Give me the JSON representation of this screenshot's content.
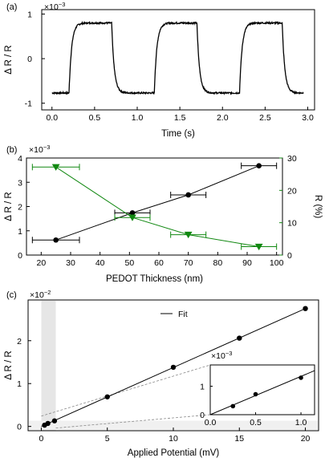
{
  "colors": {
    "black": "#000000",
    "green": "#118811",
    "shade": "#e6e6e6",
    "guide": "#888888"
  },
  "chart_data": [
    {
      "panel": "(a)",
      "type": "line",
      "title": "",
      "xlabel": "Time (s)",
      "ylabel": "Δ R / R",
      "y_multiplier": "×10",
      "y_multiplier_exp": "−3",
      "xlim": [
        -0.12,
        3.08
      ],
      "ylim": [
        -1.15,
        1.1
      ],
      "xticks": [
        "0.0",
        "0.5",
        "1.0",
        "1.5",
        "2.0",
        "2.5",
        "3.0"
      ],
      "xtick_values": [
        0,
        0.5,
        1.0,
        1.5,
        2.0,
        2.5,
        3.0
      ],
      "yticks": [
        "1",
        "0",
        "-1"
      ],
      "ytick_values": [
        1,
        0,
        -1
      ],
      "series": [
        {
          "values": {
            "period": 1.0,
            "t_rise": 0.2,
            "t_fall": 0.7,
            "t_end": 2.95,
            "low": -0.77,
            "high": 0.8,
            "rise_time_const": 0.03
          }
        }
      ]
    },
    {
      "panel": "(b)",
      "type": "scatter",
      "title": "",
      "xlabel": "PEDOT Thickness (nm)",
      "ylabel": "Δ R / R",
      "y_multiplier": "×10",
      "y_multiplier_exp": "−3",
      "ylabel_right": "R (%)",
      "xlim": [
        15,
        102
      ],
      "ylim": [
        0,
        4
      ],
      "ylim_right": [
        0,
        30
      ],
      "xticks": [
        "20",
        "30",
        "40",
        "50",
        "60",
        "70",
        "80",
        "90",
        "100"
      ],
      "xtick_values": [
        20,
        30,
        40,
        50,
        60,
        70,
        80,
        90,
        100
      ],
      "yticks": [
        "0",
        "1",
        "2",
        "3",
        "4"
      ],
      "ytick_values": [
        0,
        1,
        2,
        3,
        4
      ],
      "yticks_right": [
        "0",
        "10",
        "20",
        "30"
      ],
      "ytick_values_right": [
        0,
        10,
        20,
        30
      ],
      "series": [
        {
          "axis": "left",
          "color": "#000000",
          "marker": "circle",
          "x": [
            25,
            51,
            70,
            94
          ],
          "y": [
            0.62,
            1.74,
            2.48,
            3.68
          ],
          "xerr": [
            8,
            6,
            6,
            6
          ]
        },
        {
          "axis": "right",
          "color": "#118811",
          "marker": "triangle-down",
          "x": [
            25,
            51,
            70,
            94
          ],
          "y": [
            27.2,
            11.6,
            6.3,
            2.6
          ],
          "xerr": [
            8,
            6,
            6,
            6
          ]
        }
      ]
    },
    {
      "panel": "(c)",
      "type": "scatter",
      "title": "",
      "xlabel": "Applied Potential (mV)",
      "ylabel": "Δ R / R",
      "y_multiplier": "×10",
      "y_multiplier_exp": "−2",
      "xlim": [
        -1,
        21
      ],
      "ylim": [
        -0.1,
        2.95
      ],
      "xticks": [
        "0",
        "5",
        "10",
        "15",
        "20"
      ],
      "xtick_values": [
        0,
        5,
        10,
        15,
        20
      ],
      "yticks": [
        "0",
        "1",
        "2"
      ],
      "ytick_values": [
        0,
        1,
        2
      ],
      "legend": {
        "entries": [
          "Fit"
        ],
        "placement": "top-center"
      },
      "series": [
        {
          "name": "Fit",
          "type": "line",
          "x": [
            0,
            20
          ],
          "y": [
            0,
            2.75
          ]
        },
        {
          "type": "scatter",
          "x": [
            0.25,
            0.5,
            1,
            5,
            10,
            15,
            20
          ],
          "y": [
            0.03,
            0.07,
            0.13,
            0.69,
            1.38,
            2.06,
            2.75
          ]
        }
      ],
      "inset": {
        "y_multiplier": "×10",
        "y_multiplier_exp": "−3",
        "xlim": [
          0,
          1.15
        ],
        "ylim": [
          0,
          1.75
        ],
        "xticks": [
          "0.0",
          "0.5",
          "1.0"
        ],
        "xtick_values": [
          0,
          0.5,
          1.0
        ],
        "yticks": [
          "0",
          "1"
        ],
        "ytick_values": [
          0,
          1
        ],
        "x": [
          0.25,
          0.5,
          1.0
        ],
        "y": [
          0.3,
          0.72,
          1.3
        ],
        "fit": {
          "x": [
            0,
            1.15
          ],
          "y": [
            0,
            1.55
          ]
        }
      }
    }
  ]
}
